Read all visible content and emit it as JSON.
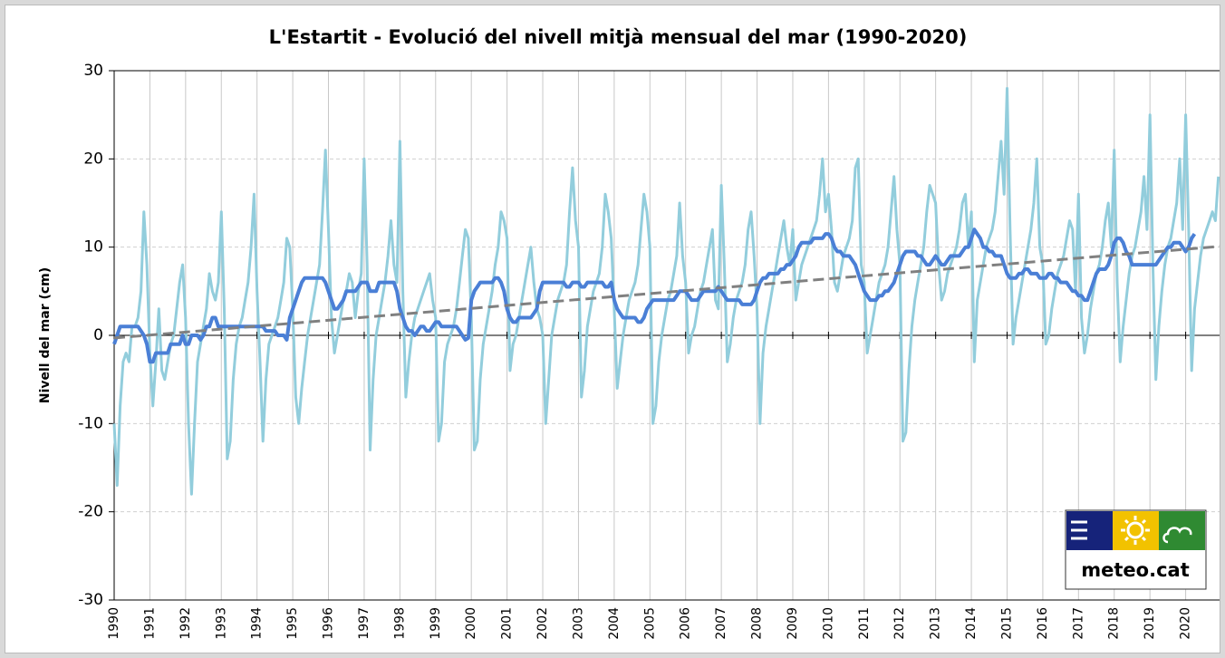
{
  "chart_data": {
    "type": "line",
    "title": "L'Estartit - Evolució del nivell mitjà mensual del mar (1990-2020)",
    "y_label": "Nivell del mar (cm)",
    "logo_text": "meteo.cat",
    "ylim": [
      -30,
      30
    ],
    "yticks": [
      -30,
      -20,
      -10,
      0,
      10,
      20,
      30
    ],
    "grid": true,
    "categories": [
      "1990",
      null,
      null,
      null,
      null,
      null,
      null,
      null,
      null,
      null,
      null,
      null,
      "1991",
      null,
      null,
      null,
      null,
      null,
      null,
      null,
      null,
      null,
      null,
      null,
      "1992",
      null,
      null,
      null,
      null,
      null,
      null,
      null,
      null,
      null,
      null,
      null,
      "1993",
      null,
      null,
      null,
      null,
      null,
      null,
      null,
      null,
      null,
      null,
      null,
      "1994",
      null,
      null,
      null,
      null,
      null,
      null,
      null,
      null,
      null,
      null,
      null,
      "1995",
      null,
      null,
      null,
      null,
      null,
      null,
      null,
      null,
      null,
      null,
      null,
      "1996",
      null,
      null,
      null,
      null,
      null,
      null,
      null,
      null,
      null,
      null,
      null,
      "1997",
      null,
      null,
      null,
      null,
      null,
      null,
      null,
      null,
      null,
      null,
      null,
      "1998",
      null,
      null,
      null,
      null,
      null,
      null,
      null,
      null,
      null,
      null,
      null,
      "1999",
      null,
      null,
      null,
      null,
      null,
      null,
      null,
      null,
      null,
      null,
      null,
      "2000",
      null,
      null,
      null,
      null,
      null,
      null,
      null,
      null,
      null,
      null,
      null,
      "2001",
      null,
      null,
      null,
      null,
      null,
      null,
      null,
      null,
      null,
      null,
      null,
      "2002",
      null,
      null,
      null,
      null,
      null,
      null,
      null,
      null,
      null,
      null,
      null,
      "2003",
      null,
      null,
      null,
      null,
      null,
      null,
      null,
      null,
      null,
      null,
      null,
      "2004",
      null,
      null,
      null,
      null,
      null,
      null,
      null,
      null,
      null,
      null,
      null,
      "2005",
      null,
      null,
      null,
      null,
      null,
      null,
      null,
      null,
      null,
      null,
      null,
      "2006",
      null,
      null,
      null,
      null,
      null,
      null,
      null,
      null,
      null,
      null,
      null,
      "2007",
      null,
      null,
      null,
      null,
      null,
      null,
      null,
      null,
      null,
      null,
      null,
      "2008",
      null,
      null,
      null,
      null,
      null,
      null,
      null,
      null,
      null,
      null,
      null,
      "2009",
      null,
      null,
      null,
      null,
      null,
      null,
      null,
      null,
      null,
      null,
      null,
      "2010",
      null,
      null,
      null,
      null,
      null,
      null,
      null,
      null,
      null,
      null,
      null,
      "2011",
      null,
      null,
      null,
      null,
      null,
      null,
      null,
      null,
      null,
      null,
      null,
      "2012",
      null,
      null,
      null,
      null,
      null,
      null,
      null,
      null,
      null,
      null,
      null,
      "2013",
      null,
      null,
      null,
      null,
      null,
      null,
      null,
      null,
      null,
      null,
      null,
      "2014",
      null,
      null,
      null,
      null,
      null,
      null,
      null,
      null,
      null,
      null,
      null,
      "2015",
      null,
      null,
      null,
      null,
      null,
      null,
      null,
      null,
      null,
      null,
      null,
      "2016",
      null,
      null,
      null,
      null,
      null,
      null,
      null,
      null,
      null,
      null,
      null,
      "2017",
      null,
      null,
      null,
      null,
      null,
      null,
      null,
      null,
      null,
      null,
      null,
      "2018",
      null,
      null,
      null,
      null,
      null,
      null,
      null,
      null,
      null,
      null,
      null,
      "2019",
      null,
      null,
      null,
      null,
      null,
      null,
      null,
      null,
      null,
      null,
      null,
      "2020",
      null,
      null,
      null,
      null,
      null,
      null,
      null,
      null,
      null,
      null,
      null
    ],
    "series": [
      {
        "color": "#92cddc",
        "width": 3,
        "values": [
          -10,
          -17,
          -8,
          -3,
          -2,
          -3,
          1,
          1,
          2,
          5,
          14,
          8,
          -2,
          -8,
          -3,
          3,
          -4,
          -5,
          -3,
          -1,
          0,
          3,
          6,
          8,
          2,
          -10,
          -18,
          -10,
          -3,
          -1,
          1,
          3,
          7,
          5,
          4,
          6,
          14,
          3,
          -14,
          -12,
          -5,
          -1,
          1,
          2,
          4,
          6,
          10,
          16,
          5,
          -3,
          -12,
          -5,
          -1,
          0,
          1,
          2,
          4,
          6,
          11,
          10,
          3,
          -7,
          -10,
          -6,
          -3,
          0,
          2,
          4,
          6,
          8,
          14,
          21,
          12,
          2,
          -2,
          0,
          2,
          4,
          5,
          7,
          6,
          2,
          5,
          7,
          20,
          8,
          -13,
          -5,
          0,
          2,
          4,
          6,
          9,
          13,
          8,
          6,
          22,
          5,
          -7,
          -3,
          0,
          2,
          3,
          4,
          5,
          6,
          7,
          4,
          2,
          -12,
          -10,
          -3,
          -1,
          0,
          1,
          3,
          6,
          9,
          12,
          11,
          2,
          -13,
          -12,
          -5,
          -1,
          1,
          3,
          5,
          8,
          10,
          14,
          13,
          11,
          -4,
          -1,
          0,
          2,
          4,
          6,
          8,
          10,
          6,
          3,
          2,
          0,
          -10,
          -5,
          0,
          2,
          4,
          5,
          6,
          8,
          14,
          19,
          13,
          10,
          -7,
          -4,
          1,
          3,
          5,
          6,
          7,
          10,
          16,
          14,
          11,
          3,
          -6,
          -3,
          0,
          2,
          4,
          5,
          6,
          8,
          12,
          16,
          14,
          10,
          -10,
          -8,
          -3,
          0,
          2,
          4,
          5,
          7,
          9,
          15,
          9,
          6,
          -2,
          0,
          1,
          3,
          5,
          6,
          8,
          10,
          12,
          4,
          3,
          17,
          8,
          -3,
          -1,
          2,
          4,
          5,
          6,
          8,
          12,
          14,
          9,
          3,
          -10,
          -2,
          1,
          3,
          5,
          7,
          9,
          11,
          13,
          10,
          8,
          12,
          4,
          6,
          8,
          9,
          10,
          11,
          12,
          13,
          16,
          20,
          14,
          16,
          12,
          6,
          5,
          7,
          9,
          10,
          11,
          13,
          19,
          20,
          8,
          6,
          -2,
          0,
          2,
          4,
          6,
          7,
          8,
          10,
          14,
          18,
          12,
          8,
          -12,
          -11,
          -4,
          1,
          4,
          6,
          8,
          10,
          14,
          17,
          16,
          15,
          8,
          4,
          5,
          7,
          8,
          9,
          10,
          12,
          15,
          16,
          10,
          14,
          -3,
          4,
          6,
          8,
          10,
          11,
          12,
          14,
          18,
          22,
          16,
          28,
          12,
          -1,
          2,
          4,
          6,
          8,
          10,
          12,
          15,
          20,
          10,
          8,
          -1,
          0,
          3,
          5,
          7,
          8,
          9,
          11,
          13,
          12,
          5,
          16,
          2,
          -2,
          0,
          3,
          5,
          7,
          8,
          10,
          13,
          15,
          10,
          21,
          6,
          -3,
          1,
          4,
          7,
          9,
          10,
          12,
          14,
          18,
          12,
          25,
          8,
          -5,
          1,
          5,
          8,
          10,
          11,
          13,
          15,
          20,
          12,
          25,
          12,
          -4,
          3,
          6,
          9,
          11,
          12,
          13,
          14,
          13,
          18
        ]
      },
      {
        "color": "#4a7fd6",
        "width": 4,
        "values": [
          -1,
          0,
          1,
          1,
          1,
          1,
          1,
          1,
          1,
          0.5,
          0,
          -1,
          -3,
          -3,
          -2,
          -2,
          -2,
          -2,
          -2,
          -1,
          -1,
          -1,
          -1,
          0,
          -1,
          -1,
          0,
          0,
          0,
          -0.5,
          0,
          1,
          1,
          2,
          2,
          1,
          1,
          1,
          1,
          1,
          1,
          1,
          1,
          1,
          1,
          1,
          1,
          1,
          1,
          1,
          1,
          0.5,
          0.5,
          0.5,
          0.5,
          0,
          0,
          0,
          -0.5,
          2,
          3,
          4,
          5,
          6,
          6.5,
          6.5,
          6.5,
          6.5,
          6.5,
          6.5,
          6.5,
          6,
          5,
          4,
          3,
          3,
          3.5,
          4,
          5,
          5,
          5,
          5,
          5.5,
          6,
          6,
          6,
          5,
          5,
          5,
          6,
          6,
          6,
          6,
          6,
          6,
          5,
          3,
          2,
          1,
          0.5,
          0.5,
          0,
          0.5,
          1,
          1,
          0.5,
          0.5,
          1,
          1.5,
          1.5,
          1,
          1,
          1,
          1,
          1,
          1,
          0.5,
          0,
          -0.5,
          -0.3,
          4,
          5,
          5.5,
          6,
          6,
          6,
          6,
          6,
          6.5,
          6.5,
          6,
          5,
          3,
          2,
          1.5,
          1.5,
          2,
          2,
          2,
          2,
          2,
          2.5,
          3,
          5,
          6,
          6,
          6,
          6,
          6,
          6,
          6,
          6,
          5.5,
          5.5,
          6,
          6,
          6,
          5.5,
          5.5,
          6,
          6,
          6,
          6,
          6,
          6,
          5.5,
          5.5,
          6,
          4,
          3,
          2.5,
          2,
          2,
          2,
          2,
          2,
          1.5,
          1.5,
          2,
          3,
          3.5,
          4,
          4,
          4,
          4,
          4,
          4,
          4,
          4,
          4.5,
          5,
          5,
          5,
          4.5,
          4,
          4,
          4,
          4.5,
          5,
          5,
          5,
          5,
          5,
          5.5,
          5,
          4.5,
          4,
          4,
          4,
          4,
          4,
          3.5,
          3.5,
          3.5,
          3.5,
          4,
          5,
          6,
          6.5,
          6.5,
          7,
          7,
          7,
          7,
          7.5,
          7.5,
          8,
          8,
          8.5,
          9,
          10,
          10.5,
          10.5,
          10.5,
          10.5,
          11,
          11,
          11,
          11,
          11.5,
          11.5,
          11,
          10,
          9.5,
          9.5,
          9,
          9,
          9,
          8.5,
          8,
          7,
          6,
          5,
          4.5,
          4,
          4,
          4,
          4.5,
          4.5,
          5,
          5,
          5.5,
          6,
          7,
          8,
          9,
          9.5,
          9.5,
          9.5,
          9.5,
          9,
          9,
          8.5,
          8,
          8,
          8.5,
          9,
          8.5,
          8,
          8,
          8.5,
          9,
          9,
          9,
          9,
          9.5,
          10,
          10,
          11,
          12,
          11.5,
          11,
          10,
          10,
          9.5,
          9.5,
          9,
          9,
          9,
          8,
          7,
          6.5,
          6.5,
          6.5,
          7,
          7,
          7.5,
          7.5,
          7,
          7,
          7,
          6.5,
          6.5,
          6.5,
          7,
          7,
          6.5,
          6.5,
          6,
          6,
          6,
          5.5,
          5,
          5,
          4.5,
          4.5,
          4,
          4,
          5,
          6,
          7,
          7.5,
          7.5,
          7.5,
          8,
          9,
          10.5,
          11,
          11,
          10.5,
          9.5,
          9,
          8,
          8,
          8,
          8,
          8,
          8,
          8,
          8,
          8,
          8.5,
          9,
          9.5,
          10,
          10,
          10.5,
          10.5,
          10.5,
          10,
          9.5,
          10,
          11,
          11.5,
          null,
          null,
          null,
          null,
          null,
          null,
          null,
          null
        ]
      }
    ],
    "trend_line": {
      "start": -0.3,
      "end": 10.1,
      "color": "#808080",
      "dashed": true
    }
  }
}
